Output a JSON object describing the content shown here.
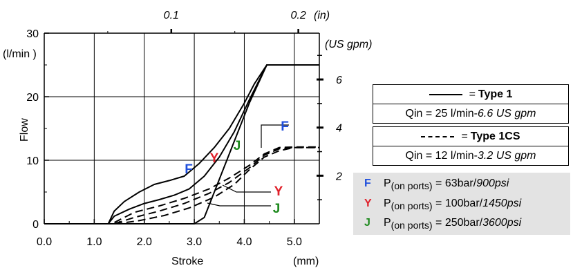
{
  "chart_data": {
    "type": "line",
    "xlabel": "Stroke",
    "xunit": "(mm)",
    "ylabel": "Flow",
    "yunit": "(l/min )",
    "y2unit": "(US gpm)",
    "x2unit": "(in)",
    "xlim": [
      0.0,
      5.5
    ],
    "ylim": [
      0,
      30
    ],
    "x_ticks": [
      "0.0",
      "1.0",
      "2.0",
      "3.0",
      "4.0",
      "5.0"
    ],
    "y_ticks": [
      "0",
      "10",
      "20",
      "30"
    ],
    "top_ticks": [
      "0.1",
      "0.2"
    ],
    "right_ticks": [
      "2",
      "4",
      "6"
    ],
    "grid": true,
    "series": [
      {
        "group": "Type 1",
        "marker": "F",
        "style": "solid",
        "x": [
          0,
          1.28,
          1.4,
          1.6,
          1.9,
          2.2,
          2.5,
          2.8,
          3.1,
          3.4,
          3.7,
          4.0,
          4.2,
          4.45,
          5.5
        ],
        "y": [
          0,
          0,
          2,
          3.5,
          5,
          6.2,
          6.8,
          7.5,
          9.5,
          12,
          15,
          19,
          22,
          25,
          25
        ]
      },
      {
        "group": "Type 1",
        "marker": "Y",
        "style": "solid",
        "x": [
          0,
          1.28,
          1.4,
          1.7,
          2.0,
          2.3,
          2.6,
          2.9,
          3.2,
          3.5,
          3.8,
          4.1,
          4.45,
          5.5
        ],
        "y": [
          0,
          0,
          1.2,
          2.3,
          3.2,
          3.8,
          4.5,
          5.5,
          7.5,
          10.5,
          14.5,
          19.5,
          25,
          25
        ]
      },
      {
        "group": "Type 1",
        "marker": "J",
        "style": "solid",
        "x": [
          0,
          3.0,
          3.2,
          3.5,
          3.8,
          4.1,
          4.45,
          5.5
        ],
        "y": [
          0,
          0,
          1,
          7,
          13,
          19,
          25,
          25
        ]
      },
      {
        "group": "Type 1CS",
        "marker": "F",
        "style": "dashed",
        "x": [
          0,
          1.35,
          1.8,
          2.3,
          2.8,
          3.3,
          3.7,
          4.1,
          4.4,
          4.7,
          5.0,
          5.5
        ],
        "y": [
          0,
          0,
          1.8,
          2.8,
          4,
          5.5,
          7.2,
          9.2,
          11,
          12,
          12.1,
          12.1
        ]
      },
      {
        "group": "Type 1CS",
        "marker": "Y",
        "style": "dashed",
        "x": [
          0,
          1.4,
          1.8,
          2.3,
          2.8,
          3.3,
          3.7,
          4.1,
          4.4,
          4.7,
          5.0,
          5.5
        ],
        "y": [
          0,
          0,
          1,
          2,
          3.2,
          4.8,
          6.5,
          8.8,
          10.8,
          11.8,
          12,
          12
        ],
        "note": "unlabeled"
      },
      {
        "group": "Type 1CS",
        "marker": "J",
        "style": "dashed",
        "x": [
          0,
          1.45,
          1.9,
          2.4,
          2.9,
          3.4,
          3.8,
          4.1,
          4.4,
          4.7,
          5.0,
          5.5
        ],
        "y": [
          0,
          0,
          0.5,
          1.3,
          2.5,
          4.2,
          6.2,
          8.5,
          10.5,
          11.5,
          12,
          12
        ],
        "note": "unlabeled"
      }
    ],
    "markers": [
      {
        "letter": "F",
        "color": "#1f4fdc"
      },
      {
        "letter": "Y",
        "color": "#e0202a"
      },
      {
        "letter": "J",
        "color": "#1f8a1f"
      }
    ]
  },
  "legend": {
    "type1": {
      "eq": "=",
      "name": "Type 1",
      "qin": "Qin = 25 l/min",
      "dash": "-",
      "qin_us": "6.6 US gpm"
    },
    "type1cs": {
      "eq": "=",
      "name": "Type 1CS",
      "qin": "Qin = 12 l/min",
      "dash": "-",
      "qin_us": "3.2 US gpm"
    }
  },
  "pressures": [
    {
      "letter": "F",
      "color": "#1f4fdc",
      "p": "P",
      "sub": "(on ports)",
      "value": " = 63bar/",
      "value_us": "900psi"
    },
    {
      "letter": "Y",
      "color": "#e0202a",
      "p": "P",
      "sub": "(on ports)",
      "value": " = 100bar/",
      "value_us": "1450psi"
    },
    {
      "letter": "J",
      "color": "#1f8a1f",
      "p": "P",
      "sub": "(on ports)",
      "value": " = 250bar/",
      "value_us": "3600psi"
    }
  ]
}
